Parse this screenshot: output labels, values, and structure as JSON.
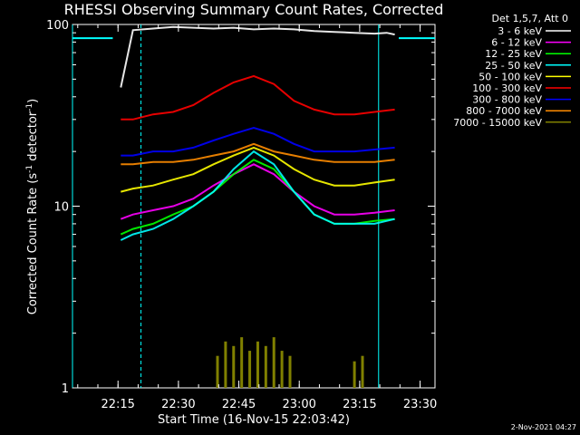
{
  "chart_data": {
    "type": "line",
    "title": "RHESSI Observing Summary Count Rates, Corrected",
    "xlabel": "Start Time (16-Nov-15 22:03:42)",
    "ylabel_main": "Corrected Count Rate (s",
    "ylabel_sup1": "-1",
    "ylabel_mid": " detector",
    "ylabel_sup2": "-1",
    "ylabel_end": ")",
    "yscale": "log",
    "ylim": [
      1,
      100
    ],
    "xlim_minutes": [
      0,
      90
    ],
    "xticks": [
      "22:15",
      "22:30",
      "22:45",
      "23:00",
      "23:15",
      "23:30"
    ],
    "yticks": [
      "1",
      "10",
      "100"
    ],
    "legend_header": "Det 1,5,7, Att 0",
    "timestamp": "2-Nov-2021 04:27",
    "data_interval_minutes": [
      12,
      80
    ],
    "markers_solid_minutes": [
      0,
      76
    ],
    "markers_dashed_minutes": [
      17,
      94
    ],
    "series": [
      {
        "name": "3 - 6 keV",
        "color": "#000000",
        "x": [
          12,
          15,
          20,
          25,
          30,
          35,
          40,
          45,
          50,
          55,
          60,
          65,
          70,
          75,
          78,
          80
        ],
        "y": [
          45,
          93,
          95,
          97,
          96,
          95,
          96,
          94,
          95,
          94,
          92,
          91,
          90,
          89,
          90,
          88
        ]
      },
      {
        "name": "6 - 12 keV",
        "color": "#ff00ff",
        "x": [
          12,
          15,
          20,
          25,
          30,
          35,
          40,
          45,
          50,
          55,
          60,
          65,
          70,
          75,
          80
        ],
        "y": [
          8.5,
          9,
          9.5,
          10,
          11,
          13,
          15,
          17,
          15,
          12,
          10,
          9,
          9,
          9.2,
          9.5
        ]
      },
      {
        "name": "12 - 25 keV",
        "color": "#00ff00",
        "x": [
          12,
          15,
          20,
          25,
          30,
          35,
          40,
          45,
          50,
          55,
          60,
          65,
          70,
          75,
          80
        ],
        "y": [
          7,
          7.5,
          8,
          9,
          10,
          12,
          15,
          18,
          16,
          12,
          9,
          8,
          8,
          8.3,
          8.5
        ]
      },
      {
        "name": "25 - 50 keV",
        "color": "#00ffff",
        "x": [
          12,
          15,
          20,
          25,
          30,
          35,
          40,
          45,
          50,
          55,
          60,
          65,
          70,
          75,
          80
        ],
        "y": [
          6.5,
          7,
          7.5,
          8.5,
          10,
          12,
          16,
          20,
          17,
          12,
          9,
          8,
          8,
          8,
          8.5
        ]
      },
      {
        "name": "50 - 100 keV",
        "color": "#ffff00",
        "x": [
          12,
          15,
          20,
          25,
          30,
          35,
          40,
          45,
          50,
          55,
          60,
          65,
          70,
          75,
          80
        ],
        "y": [
          12,
          12.5,
          13,
          14,
          15,
          17,
          19,
          21,
          19,
          16,
          14,
          13,
          13,
          13.5,
          14
        ]
      },
      {
        "name": "100 - 300 keV",
        "color": "#ff0000",
        "x": [
          12,
          15,
          20,
          25,
          30,
          35,
          40,
          45,
          50,
          55,
          60,
          65,
          70,
          75,
          80
        ],
        "y": [
          30,
          30,
          32,
          33,
          36,
          42,
          48,
          52,
          47,
          38,
          34,
          32,
          32,
          33,
          34
        ]
      },
      {
        "name": "300 - 800 keV",
        "color": "#0000ff",
        "x": [
          12,
          15,
          20,
          25,
          30,
          35,
          40,
          45,
          50,
          55,
          60,
          65,
          70,
          75,
          80
        ],
        "y": [
          19,
          19,
          20,
          20,
          21,
          23,
          25,
          27,
          25,
          22,
          20,
          20,
          20,
          20.5,
          21
        ]
      },
      {
        "name": "800 - 7000 keV",
        "color": "#ff8c00",
        "x": [
          12,
          15,
          20,
          25,
          30,
          35,
          40,
          45,
          50,
          55,
          60,
          65,
          70,
          75,
          80
        ],
        "y": [
          17,
          17,
          17.5,
          17.5,
          18,
          19,
          20,
          22,
          20,
          19,
          18,
          17.5,
          17.5,
          17.5,
          18
        ]
      },
      {
        "name": "7000 - 15000 keV",
        "color": "#808000",
        "x": [
          36,
          38,
          40,
          42,
          44,
          46,
          48,
          50,
          52,
          54,
          70,
          72
        ],
        "y": [
          1.5,
          1.8,
          1.7,
          1.9,
          1.6,
          1.8,
          1.7,
          1.9,
          1.6,
          1.5,
          1.4,
          1.5
        ]
      }
    ]
  }
}
